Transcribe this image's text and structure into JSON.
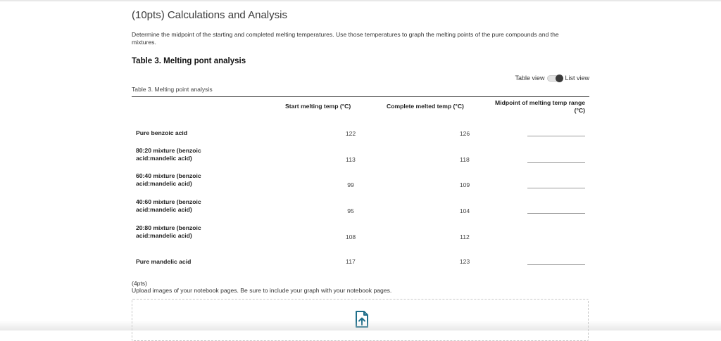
{
  "section_title": "(10pts) Calculations and Analysis",
  "instructions": "Determine the midpoint of the starting and completed melting temperatures. Use those temperatures to graph the melting points of the pure compounds and the mixtures.",
  "table_heading": "Table 3. Melting pont analysis",
  "view_toggle": {
    "table_label": "Table view",
    "list_label": "List view",
    "selected": "List view"
  },
  "table": {
    "caption": "Table 3. Melting point analysis",
    "columns": [
      "Start melting temp (°C)",
      "Complete melted temp (°C)",
      "Midpoint of melting temp range (°C)"
    ],
    "rows": [
      {
        "label": "Pure benzoic acid",
        "start": "122",
        "complete": "126",
        "midpoint": ""
      },
      {
        "label": "80:20 mixture (benzoic acid:mandelic acid)",
        "start": "113",
        "complete": "118",
        "midpoint": ""
      },
      {
        "label": "60:40 mixture (benzoic acid:mandelic acid)",
        "start": "99",
        "complete": "109",
        "midpoint": ""
      },
      {
        "label": "40:60 mixture (benzoic acid:mandelic acid)",
        "start": "95",
        "complete": "104",
        "midpoint": ""
      },
      {
        "label": "20:80 mixture (benzoic acid:mandelic acid)",
        "start": "108",
        "complete": "112",
        "midpoint": ""
      },
      {
        "label": "Pure mandelic acid",
        "start": "117",
        "complete": "123",
        "midpoint": ""
      }
    ]
  },
  "upload": {
    "points": "(4pts)",
    "instructions": "Upload images of your notebook pages. Be sure to include your graph with your notebook pages.",
    "icon": "file-upload-icon",
    "accent_color": "#1f6f8b"
  }
}
